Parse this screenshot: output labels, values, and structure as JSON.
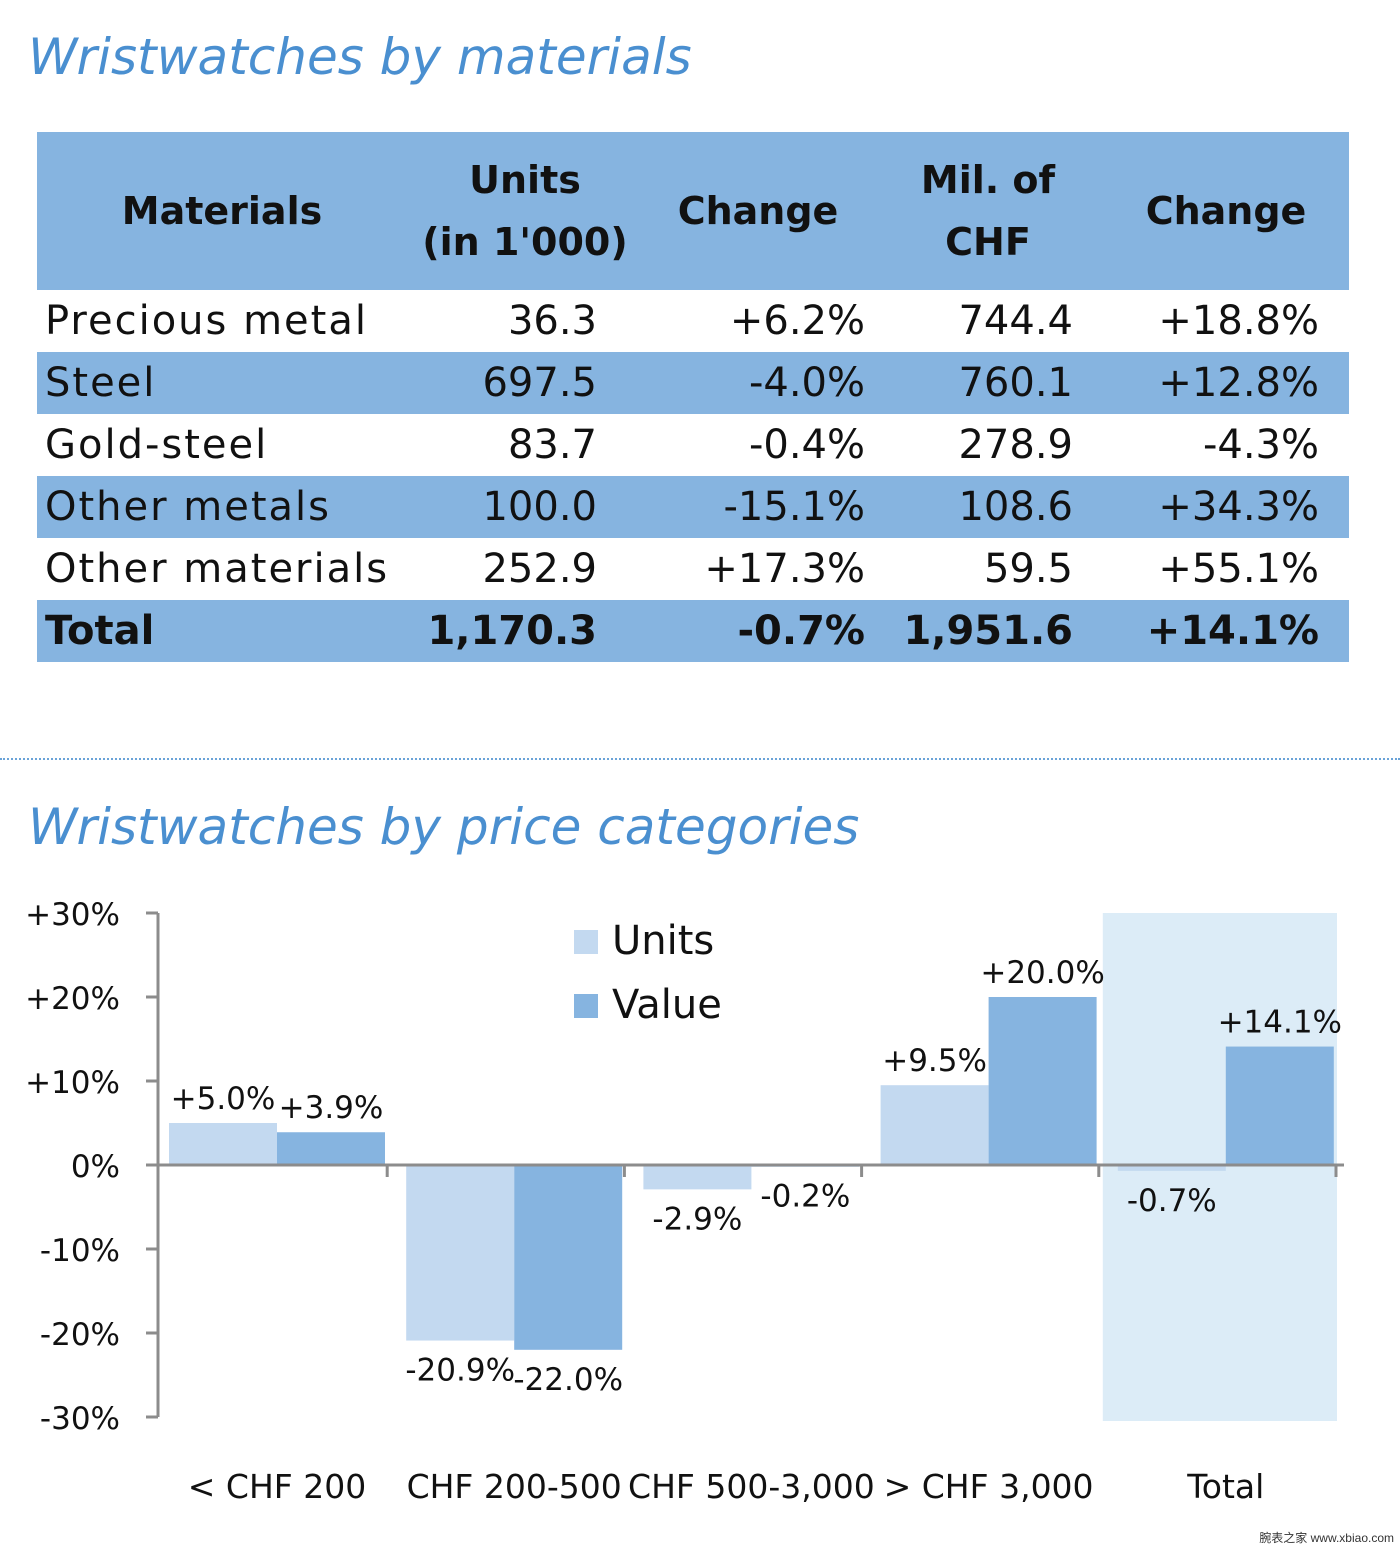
{
  "section1": {
    "title": "Wristwatches by materials"
  },
  "table": {
    "headers": [
      "Materials",
      "Units (in 1'000)",
      "Change",
      "Mil. of CHF",
      "Change"
    ],
    "headers_lines": [
      [
        "Materials"
      ],
      [
        "Units",
        "(in 1'000)"
      ],
      [
        "Change"
      ],
      [
        "Mil. of",
        "CHF"
      ],
      [
        "Change"
      ]
    ],
    "rows": [
      [
        "Precious metal",
        "36.3",
        "+6.2%",
        "744.4",
        "+18.8%"
      ],
      [
        "Steel",
        "697.5",
        "-4.0%",
        "760.1",
        "+12.8%"
      ],
      [
        "Gold-steel",
        "83.7",
        "-0.4%",
        "278.9",
        "-4.3%"
      ],
      [
        "Other metals",
        "100.0",
        "-15.1%",
        "108.6",
        "+34.3%"
      ],
      [
        "Other materials",
        "252.9",
        "+17.3%",
        "59.5",
        "+55.1%"
      ]
    ],
    "total": [
      "Total",
      "1,170.3",
      "-0.7%",
      "1,951.6",
      "+14.1%"
    ],
    "header_color": "#86b4e0"
  },
  "section2": {
    "title": "Wristwatches by price categories"
  },
  "chart_data": {
    "type": "bar",
    "title": "Wristwatches by price categories",
    "categories": [
      "< CHF 200",
      "CHF 200-500",
      "CHF 500-3,000",
      "> CHF 3,000",
      "Total"
    ],
    "series": [
      {
        "name": "Units",
        "values": [
          5.0,
          -20.9,
          -2.9,
          9.5,
          -0.7
        ],
        "labels": [
          "+5.0%",
          "-20.9%",
          "-2.9%",
          "+9.5%",
          "-0.7%"
        ],
        "color": "#c3d9f0"
      },
      {
        "name": "Value",
        "values": [
          3.9,
          -22.0,
          -0.2,
          20.0,
          14.1
        ],
        "labels": [
          "+3.9%",
          "-22.0%",
          "-0.2%",
          "+20.0%",
          "+14.1%"
        ],
        "color": "#86b4e0"
      }
    ],
    "ylim": [
      -30,
      30
    ],
    "yticks": [
      30,
      20,
      10,
      0,
      -10,
      -20,
      -30
    ],
    "ytick_labels": [
      "+30%",
      "+20%",
      "+10%",
      "0%",
      "-10%",
      "-20%",
      "-30%"
    ],
    "highlight_category": "Total",
    "highlight_color": "#dcecf7",
    "legend_position": "top-center",
    "grid": false
  },
  "watermark": "腕表之家 www.xbiao.com"
}
